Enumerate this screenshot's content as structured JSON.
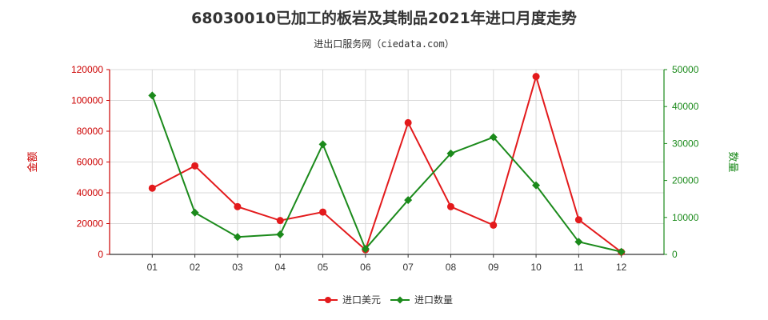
{
  "header": {
    "title": "68030010已加工的板岩及其制品2021年进口月度走势",
    "subtitle": "进出口服务网（ciedata.com）"
  },
  "colors": {
    "value_series": "#e31a1c",
    "qty_series": "#1b8a1b",
    "left_axis": "#cc0000",
    "right_axis": "#1b8a1b",
    "grid": "#d9d9d9"
  },
  "chart_data": {
    "type": "line",
    "categories": [
      "01",
      "02",
      "03",
      "04",
      "05",
      "06",
      "07",
      "08",
      "09",
      "10",
      "11",
      "12"
    ],
    "series": [
      {
        "name": "进口美元",
        "axis": "left",
        "values": [
          43000,
          57500,
          31000,
          22000,
          27500,
          3000,
          85500,
          31000,
          19000,
          115500,
          22500,
          1500
        ]
      },
      {
        "name": "进口数量",
        "axis": "right",
        "values": [
          43000,
          11300,
          4700,
          5400,
          29800,
          1500,
          14700,
          27300,
          31700,
          18700,
          3400,
          700
        ]
      }
    ],
    "ylabel_left": "金额",
    "ylabel_right": "数量",
    "ylim_left": [
      0,
      120000
    ],
    "ylim_right": [
      0,
      50000
    ],
    "yticks_left": [
      "0",
      "20000",
      "40000",
      "60000",
      "80000",
      "100000",
      "120000"
    ],
    "yticks_right": [
      "0",
      "10000",
      "20000",
      "30000",
      "40000",
      "50000"
    ],
    "grid": true,
    "legend_position": "bottom"
  }
}
